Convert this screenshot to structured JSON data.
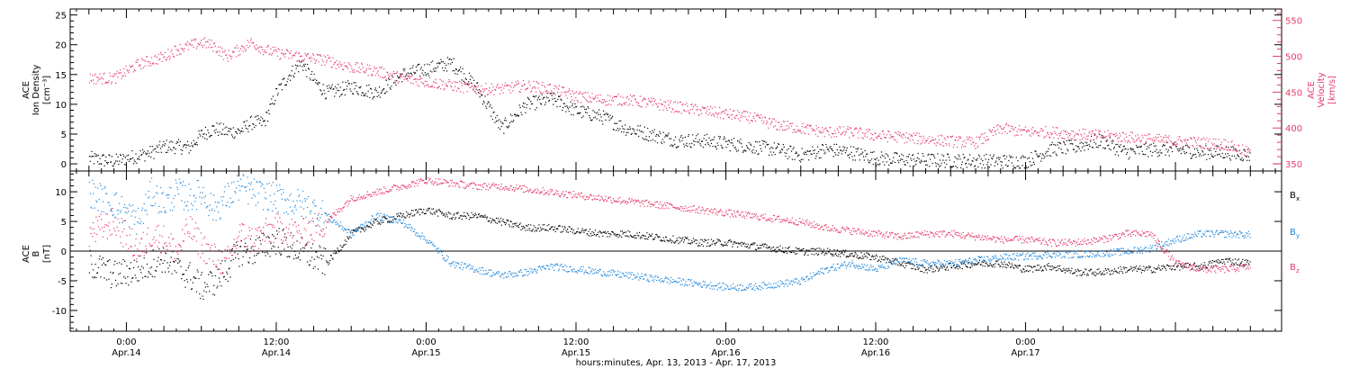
{
  "chart_data": [
    {
      "type": "scatter",
      "panel": "top",
      "ylabel_left": [
        "ACE",
        "Ion Density",
        "[cm⁻³]"
      ],
      "ylabel_right": [
        "ACE",
        "Velocity",
        "[km/s]"
      ],
      "ylim_left": [
        -1.2,
        26
      ],
      "yticks_left": [
        0,
        5,
        10,
        15,
        20,
        25
      ],
      "ylim_right": [
        340,
        566
      ],
      "yticks_right": [
        350,
        400,
        450,
        500,
        550
      ],
      "series": [
        {
          "name": "Ion Density",
          "axis": "left",
          "color": "#000000",
          "x": [
            -3,
            -1,
            1,
            2,
            3,
            4,
            5,
            6,
            7,
            8,
            9,
            10,
            11,
            12,
            13,
            14,
            15,
            16,
            18,
            20,
            22,
            24,
            26,
            28,
            30,
            32,
            34,
            36,
            38,
            40,
            42,
            44,
            46,
            48,
            50,
            52,
            54,
            56,
            58,
            60,
            62,
            64,
            66,
            68,
            70,
            72,
            74,
            76,
            78,
            80,
            82,
            84,
            86,
            88,
            90
          ],
          "y": [
            1,
            0.5,
            1.5,
            2,
            3,
            3,
            2.8,
            5,
            6,
            5.5,
            5.5,
            7,
            7,
            12,
            15,
            17,
            14,
            12,
            13,
            12,
            15,
            16,
            17,
            13,
            6,
            10,
            11,
            9,
            8,
            6,
            5,
            4,
            4,
            3.5,
            3,
            2.5,
            1.5,
            2.5,
            2,
            1,
            0.8,
            0.7,
            0.6,
            0.6,
            0.5,
            0.5,
            2.5,
            3,
            4,
            2,
            2.5,
            2.5,
            2,
            2,
            1.5
          ]
        },
        {
          "name": "Velocity",
          "axis": "right",
          "color": "#e63a6a",
          "x": [
            -3,
            -1,
            1,
            2,
            3,
            4,
            5,
            6,
            7,
            8,
            9,
            10,
            11,
            12,
            14,
            16,
            18,
            20,
            22,
            24,
            26,
            28,
            30,
            32,
            34,
            36,
            38,
            40,
            42,
            44,
            46,
            48,
            50,
            52,
            54,
            56,
            58,
            60,
            62,
            64,
            66,
            68,
            70,
            72,
            74,
            76,
            78,
            80,
            82,
            84,
            86,
            88,
            90
          ],
          "y": [
            470,
            470,
            490,
            495,
            500,
            510,
            515,
            520,
            515,
            500,
            510,
            520,
            510,
            505,
            500,
            495,
            485,
            480,
            470,
            465,
            460,
            455,
            455,
            460,
            455,
            445,
            440,
            440,
            435,
            430,
            425,
            420,
            415,
            405,
            400,
            395,
            395,
            390,
            388,
            385,
            382,
            380,
            400,
            395,
            395,
            392,
            390,
            388,
            385,
            382,
            380,
            378,
            365
          ]
        }
      ]
    },
    {
      "type": "scatter",
      "panel": "bottom",
      "ylabel_left": [
        "ACE",
        "B",
        "[nT]"
      ],
      "ylim": [
        -13.5,
        13.5
      ],
      "yticks": [
        -10,
        -5,
        0,
        5,
        10
      ],
      "series": [
        {
          "name": "Bx",
          "color": "#000000",
          "x": [
            -3,
            -1,
            1,
            2,
            3,
            4,
            5,
            6,
            7,
            8,
            9,
            10,
            12,
            14,
            16,
            18,
            20,
            22,
            24,
            26,
            28,
            30,
            32,
            34,
            36,
            38,
            40,
            42,
            44,
            46,
            48,
            50,
            52,
            54,
            56,
            58,
            60,
            62,
            64,
            66,
            68,
            70,
            72,
            74,
            76,
            78,
            80,
            82,
            84,
            86,
            88,
            90
          ],
          "y": [
            -2,
            -4,
            -3,
            -2,
            -1,
            -3,
            -4,
            -6,
            -5,
            -3,
            0,
            0,
            2,
            0,
            -2,
            3,
            5,
            6,
            7,
            6,
            6,
            5,
            4,
            4,
            3.5,
            3,
            3,
            2.5,
            2,
            1.5,
            1.5,
            1,
            0.5,
            0,
            0,
            -0.5,
            -1,
            -2,
            -3,
            -2.5,
            -2,
            -2,
            -3,
            -2.5,
            -3.5,
            -3.5,
            -3,
            -3,
            -2.5,
            -2.5,
            -1.5,
            -2
          ]
        },
        {
          "name": "By",
          "color": "#1f86dd",
          "x": [
            -3,
            -1,
            1,
            2,
            3,
            4,
            5,
            6,
            7,
            8,
            9,
            10,
            12,
            14,
            16,
            18,
            20,
            22,
            24,
            26,
            28,
            30,
            32,
            34,
            36,
            38,
            40,
            42,
            44,
            46,
            48,
            50,
            52,
            54,
            56,
            58,
            60,
            62,
            64,
            66,
            68,
            70,
            72,
            74,
            76,
            78,
            80,
            82,
            84,
            86,
            88,
            90
          ],
          "y": [
            10,
            8,
            5,
            10,
            8,
            10,
            9,
            10,
            7,
            9,
            11,
            10,
            9,
            8,
            6,
            3,
            6,
            5,
            2,
            -2,
            -3,
            -4,
            -3.5,
            -2.5,
            -3,
            -3.5,
            -4,
            -4.5,
            -5,
            -5.5,
            -6,
            -6,
            -5.5,
            -5,
            -3,
            -2,
            -3,
            -1.5,
            -2,
            -2,
            -1.5,
            -1,
            -0.8,
            -0.5,
            -0.5,
            -0.3,
            0,
            0.5,
            2,
            3,
            3,
            2.8
          ]
        },
        {
          "name": "Bz",
          "color": "#e63a6a",
          "x": [
            -3,
            -1,
            1,
            2,
            3,
            4,
            5,
            6,
            7,
            8,
            9,
            10,
            12,
            14,
            16,
            18,
            20,
            22,
            24,
            26,
            28,
            30,
            32,
            34,
            36,
            38,
            40,
            42,
            44,
            46,
            48,
            50,
            52,
            54,
            56,
            58,
            60,
            62,
            64,
            66,
            68,
            70,
            72,
            74,
            76,
            78,
            80,
            82,
            84,
            86,
            88,
            90
          ],
          "y": [
            3,
            5,
            0,
            3,
            2,
            0,
            4,
            1,
            -1,
            -2,
            3,
            2,
            4,
            3,
            5,
            9,
            10,
            11,
            12,
            11.5,
            11,
            11,
            10.5,
            10,
            9.5,
            9,
            8.5,
            8,
            7.5,
            7,
            6.5,
            6,
            5.5,
            5,
            4,
            3.5,
            3,
            2.5,
            3,
            3,
            2.5,
            2,
            2,
            1.5,
            1.5,
            2,
            3,
            3,
            -2,
            -3,
            -3,
            -2.5
          ]
        }
      ]
    }
  ],
  "time_axis": {
    "range_hours": [
      -4.5,
      92.5
    ],
    "major_ticks": [
      {
        "hours": 0,
        "time": "0:00",
        "date": "Apr.14"
      },
      {
        "hours": 12,
        "time": "12:00",
        "date": "Apr.14"
      },
      {
        "hours": 24,
        "time": "0:00",
        "date": "Apr.15"
      },
      {
        "hours": 36,
        "time": "12:00",
        "date": "Apr.15"
      },
      {
        "hours": 48,
        "time": "0:00",
        "date": "Apr.16"
      },
      {
        "hours": 60,
        "time": "12:00",
        "date": "Apr.16"
      },
      {
        "hours": 72,
        "time": "0:00",
        "date": "Apr.17"
      }
    ],
    "xlabel": "hours:minutes, Apr. 13, 2013 - Apr. 17, 2013"
  },
  "legend_labels": [
    {
      "symbol": "B",
      "sub": "x",
      "color": "#000000"
    },
    {
      "symbol": "B",
      "sub": "y",
      "color": "#1f86dd"
    },
    {
      "symbol": "B",
      "sub": "z",
      "color": "#e63a6a"
    }
  ]
}
